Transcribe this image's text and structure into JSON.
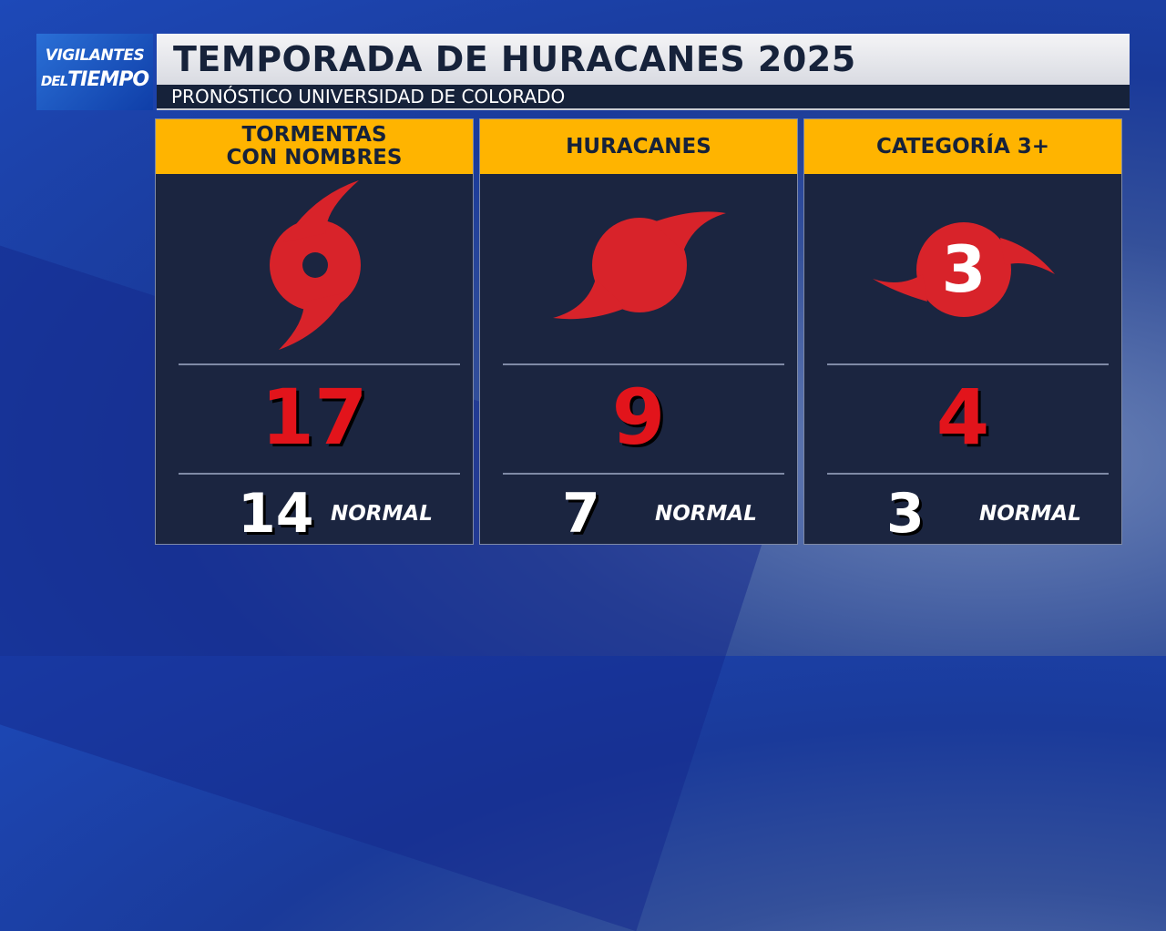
{
  "logo": {
    "line1": "VIGILANTES",
    "line2a": "DEL",
    "line2b": "TIEMPO"
  },
  "header": {
    "title": "TEMPORADA DE HURACANES 2025",
    "subtitle": "PRONÓSTICO UNIVERSIDAD DE COLORADO"
  },
  "panels": [
    {
      "header": [
        "TORMENTAS",
        "CON NOMBRES"
      ],
      "forecast": "17",
      "normal": "14",
      "normal_label": "NORMAL"
    },
    {
      "header": [
        "HURACANES"
      ],
      "forecast": "9",
      "normal": "7",
      "normal_label": "NORMAL"
    },
    {
      "header": [
        "CATEGORÍA 3+"
      ],
      "icon_text": "3",
      "forecast": "4",
      "normal": "3",
      "normal_label": "NORMAL"
    }
  ]
}
